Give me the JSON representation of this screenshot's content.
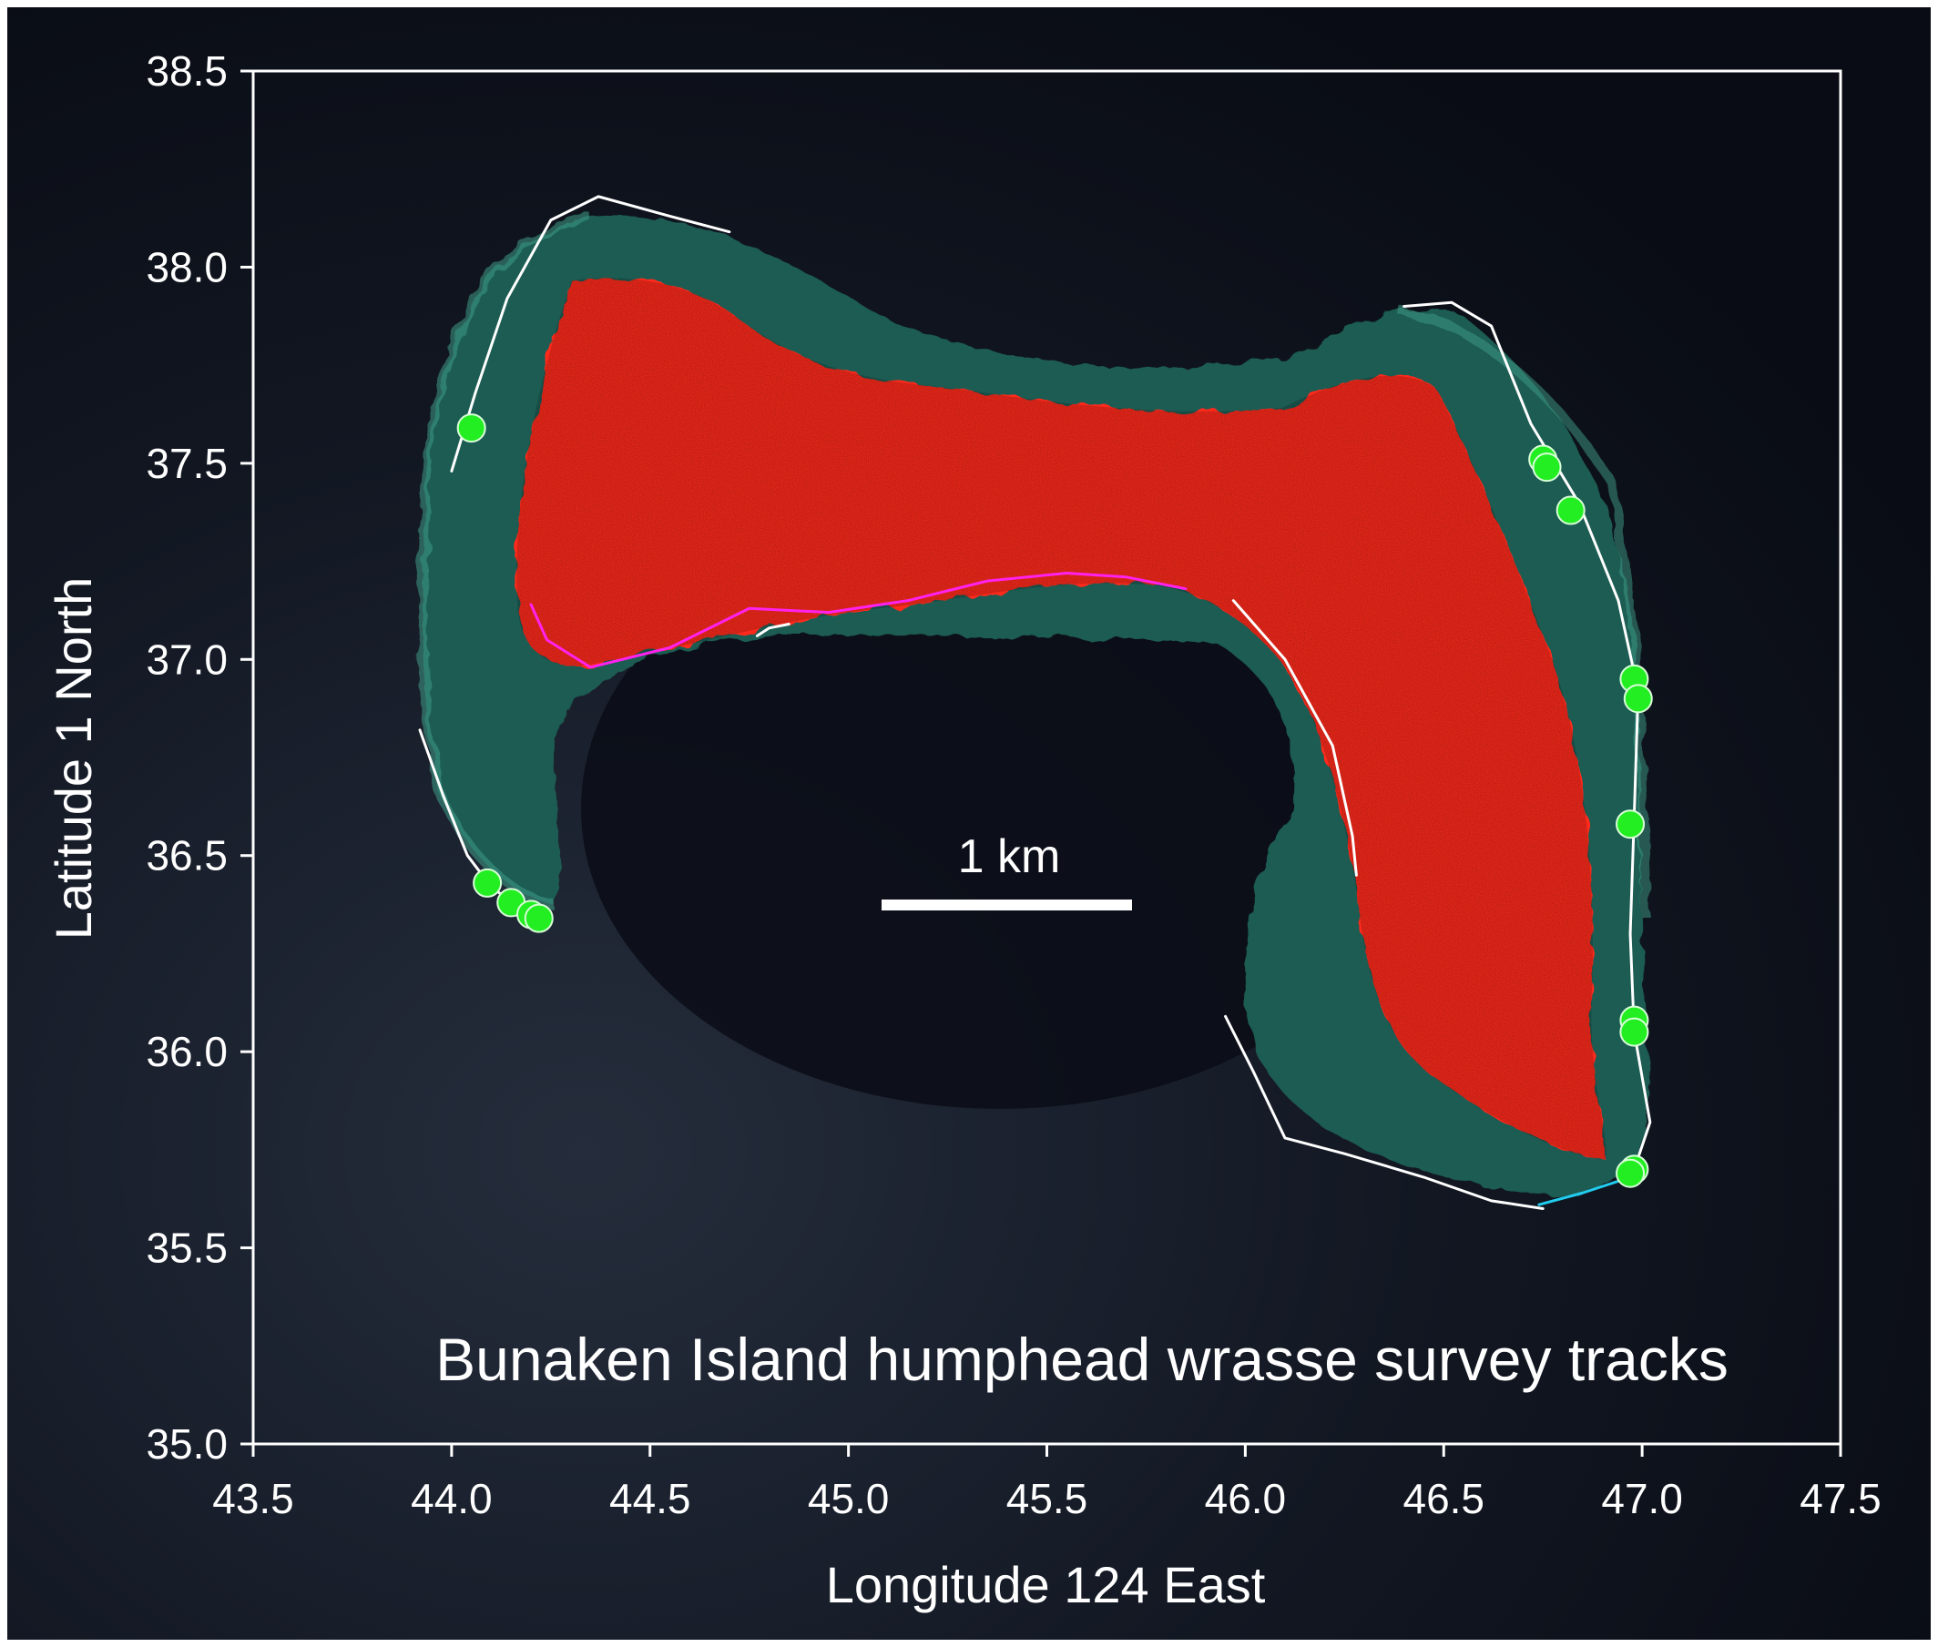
{
  "map": {
    "title": "Bunaken Island humphead wrasse survey tracks",
    "scale_bar_label": "1 km",
    "x_axis": {
      "label": "Longitude 124 East",
      "range": [
        43.5,
        47.5
      ],
      "ticks": [
        "43.5",
        "44.0",
        "44.5",
        "45.0",
        "45.5",
        "46.0",
        "46.5",
        "47.0",
        "47.5"
      ]
    },
    "y_axis": {
      "label": "Latitude 1 North",
      "range": [
        35.0,
        38.5
      ],
      "ticks": [
        "35.0",
        "35.5",
        "36.0",
        "36.5",
        "37.0",
        "37.5",
        "38.0",
        "38.5"
      ]
    },
    "colors": {
      "background": "#0b0f18",
      "reef": "#1f5c52",
      "land": "#ff2a1a",
      "track_white": "#ffffff",
      "track_magenta": "#ff22ee",
      "track_cyan": "#22ccee",
      "sighting": "#22ee22"
    },
    "tracks": [
      {
        "color": "white",
        "points": [
          [
            44.0,
            37.48
          ],
          [
            44.06,
            37.68
          ],
          [
            44.14,
            37.92
          ],
          [
            44.25,
            38.12
          ],
          [
            44.37,
            38.18
          ],
          [
            44.55,
            38.13
          ],
          [
            44.7,
            38.09
          ]
        ]
      },
      {
        "color": "white",
        "points": [
          [
            43.92,
            36.82
          ],
          [
            43.98,
            36.65
          ],
          [
            44.04,
            36.5
          ],
          [
            44.1,
            36.42
          ],
          [
            44.18,
            36.36
          ],
          [
            44.24,
            36.34
          ]
        ]
      },
      {
        "color": "white",
        "points": [
          [
            44.77,
            37.06
          ],
          [
            44.8,
            37.08
          ],
          [
            44.85,
            37.09
          ]
        ]
      },
      {
        "color": "white",
        "points": [
          [
            45.97,
            37.15
          ],
          [
            46.1,
            37.0
          ],
          [
            46.22,
            36.78
          ],
          [
            46.27,
            36.55
          ],
          [
            46.28,
            36.45
          ]
        ]
      },
      {
        "color": "white",
        "points": [
          [
            46.4,
            37.9
          ],
          [
            46.52,
            37.91
          ],
          [
            46.62,
            37.85
          ],
          [
            46.72,
            37.6
          ],
          [
            46.84,
            37.4
          ],
          [
            46.94,
            37.15
          ],
          [
            46.99,
            36.92
          ],
          [
            46.98,
            36.6
          ],
          [
            46.97,
            36.3
          ],
          [
            46.98,
            36.05
          ],
          [
            47.02,
            35.82
          ],
          [
            46.98,
            35.7
          ]
        ]
      },
      {
        "color": "white",
        "points": [
          [
            45.95,
            36.09
          ],
          [
            46.02,
            35.95
          ],
          [
            46.1,
            35.78
          ],
          [
            46.25,
            35.74
          ],
          [
            46.45,
            35.68
          ],
          [
            46.62,
            35.62
          ],
          [
            46.75,
            35.6
          ]
        ]
      },
      {
        "color": "magenta",
        "points": [
          [
            44.2,
            37.14
          ],
          [
            44.24,
            37.05
          ],
          [
            44.35,
            36.98
          ],
          [
            44.55,
            37.03
          ],
          [
            44.75,
            37.13
          ],
          [
            44.95,
            37.12
          ],
          [
            45.15,
            37.15
          ],
          [
            45.35,
            37.2
          ],
          [
            45.55,
            37.22
          ],
          [
            45.7,
            37.21
          ],
          [
            45.85,
            37.18
          ]
        ]
      },
      {
        "color": "cyan",
        "points": [
          [
            46.74,
            35.61
          ],
          [
            46.85,
            35.64
          ],
          [
            46.97,
            35.68
          ]
        ]
      }
    ],
    "sightings": [
      [
        44.05,
        37.59
      ],
      [
        44.09,
        36.43
      ],
      [
        44.15,
        36.38
      ],
      [
        44.2,
        36.35
      ],
      [
        44.22,
        36.34
      ],
      [
        46.75,
        37.51
      ],
      [
        46.76,
        37.49
      ],
      [
        46.82,
        37.38
      ],
      [
        46.98,
        36.95
      ],
      [
        46.99,
        36.9
      ],
      [
        46.97,
        36.58
      ],
      [
        46.98,
        36.08
      ],
      [
        46.98,
        36.05
      ],
      [
        46.98,
        35.7
      ],
      [
        46.97,
        35.69
      ]
    ]
  }
}
